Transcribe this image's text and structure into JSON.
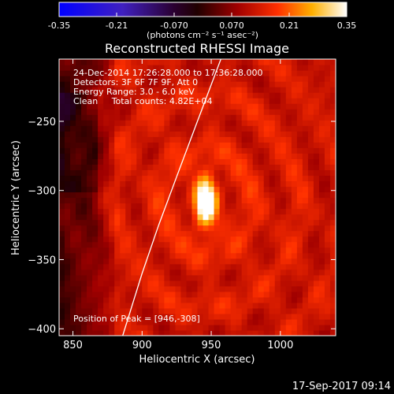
{
  "chart_data": {
    "type": "heatmap",
    "title": "Reconstructed RHESSI Image",
    "xlabel": "Heliocentric X (arcsec)",
    "ylabel": "Heliocentric Y (arcsec)",
    "xlim": [
      840,
      1040
    ],
    "ylim": [
      -405,
      -205
    ],
    "xticks": [
      850,
      900,
      950,
      1000
    ],
    "yticks": [
      -250,
      -300,
      -350,
      -400
    ],
    "grid": false,
    "colorbar": {
      "min": -0.35,
      "max": 0.35,
      "ticks": [
        "-0.35",
        "-0.21",
        "-0.070",
        "0.070",
        "0.21",
        "0.35"
      ],
      "unit_label": "(photons cm⁻² s⁻¹ asec⁻²)",
      "colormap": "blue-purple-red-yellow-white"
    },
    "annotations": [
      "24-Dec-2014 17:26:28.000 to 17:36:28.000",
      "Detectors: 3F 6F 7F 9F, Att 0",
      "Energy Range: 3.0 - 6.0 keV",
      "Clean     Total counts: 4.82E+04"
    ],
    "peak_label": "Position of Peak = [946,-308]",
    "peak": {
      "x": 946,
      "y": -308,
      "value": 0.35
    },
    "limb": [
      [
        886,
        -405
      ],
      [
        900,
        -360
      ],
      [
        912,
        -325
      ],
      [
        925,
        -290
      ],
      [
        940,
        -250
      ],
      [
        957,
        -205
      ]
    ],
    "timestamp": "17-Sep-2017 09:14"
  },
  "colors": {
    "background": "#000000",
    "text": "#ffffff",
    "limb": "#ffffff"
  }
}
